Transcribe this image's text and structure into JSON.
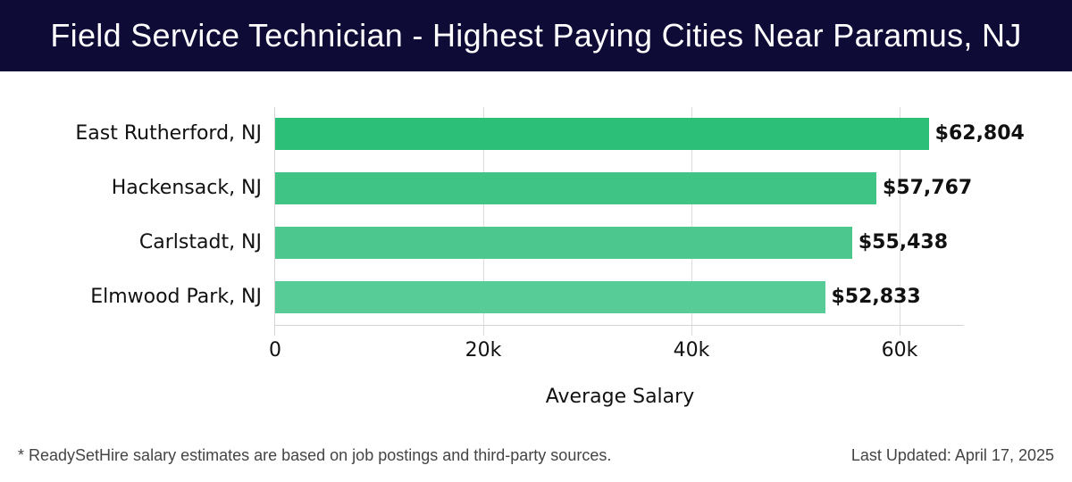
{
  "header": {
    "title": "Field Service Technician - Highest Paying Cities Near Paramus, NJ"
  },
  "chart_data": {
    "type": "bar",
    "orientation": "horizontal",
    "title": "Field Service Technician - Highest Paying Cities Near Paramus, NJ",
    "categories": [
      "East Rutherford, NJ",
      "Hackensack, NJ",
      "Carlstadt, NJ",
      "Elmwood Park, NJ"
    ],
    "values": [
      62804,
      57767,
      55438,
      52833
    ],
    "value_labels": [
      "$62,804",
      "$57,767",
      "$55,438",
      "$52,833"
    ],
    "colors": [
      "#2bbf78",
      "#40c486",
      "#4cc88e",
      "#57cc97"
    ],
    "xlabel": "Average Salary",
    "ylabel": "",
    "xticks": [
      "0",
      "20k",
      "40k",
      "60k"
    ],
    "xlim": [
      0,
      66000
    ],
    "grid": true,
    "legend": null
  },
  "footer": {
    "note": "* ReadySetHire salary estimates are based on job postings and third-party sources.",
    "updated": "Last Updated: April 17, 2025"
  }
}
